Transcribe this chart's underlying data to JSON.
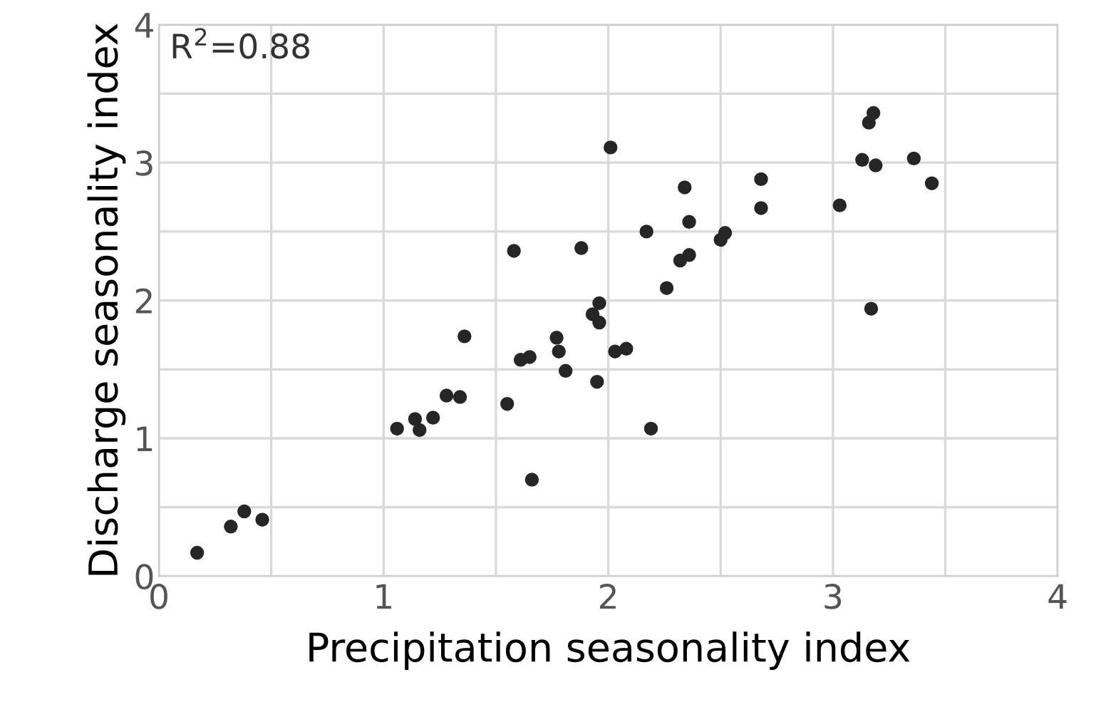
{
  "chart_data": {
    "type": "scatter",
    "xlabel": "Precipitation seasonality index",
    "ylabel": "Discharge seasonality index",
    "annotations": [
      "R$^{2}$=0.88"
    ],
    "xlim": [
      0,
      4
    ],
    "ylim": [
      0,
      4
    ],
    "xticks": [
      0,
      1,
      2,
      3,
      4
    ],
    "yticks": [
      0,
      1,
      2,
      3,
      4
    ],
    "grid": true,
    "marker": "circle",
    "legend": false,
    "series": [
      {
        "color": "#262626",
        "x": [
          0.17,
          0.32,
          0.38,
          0.46,
          1.06,
          1.14,
          1.16,
          1.22,
          1.28,
          1.34,
          1.36,
          1.55,
          1.58,
          1.61,
          1.65,
          1.66,
          1.77,
          1.78,
          1.81,
          1.88,
          1.93,
          1.96,
          1.96,
          1.95,
          2.01,
          2.03,
          2.08,
          2.17,
          2.19,
          2.26,
          2.32,
          2.36,
          2.34,
          2.36,
          2.5,
          2.52,
          2.68,
          2.68,
          3.03,
          3.13,
          3.16,
          3.18,
          3.19,
          3.17,
          3.36,
          3.44
        ],
        "values": [
          0.17,
          0.36,
          0.47,
          0.41,
          1.07,
          1.14,
          1.06,
          1.15,
          1.31,
          1.3,
          1.74,
          1.25,
          2.36,
          1.57,
          1.59,
          0.7,
          1.73,
          1.63,
          1.49,
          2.38,
          1.9,
          1.98,
          1.84,
          1.41,
          3.11,
          1.63,
          1.65,
          2.5,
          1.07,
          2.09,
          2.29,
          2.33,
          2.82,
          2.57,
          2.44,
          2.49,
          2.88,
          2.67,
          2.69,
          3.02,
          3.29,
          3.36,
          2.98,
          1.94,
          3.03,
          2.85
        ]
      }
    ]
  }
}
